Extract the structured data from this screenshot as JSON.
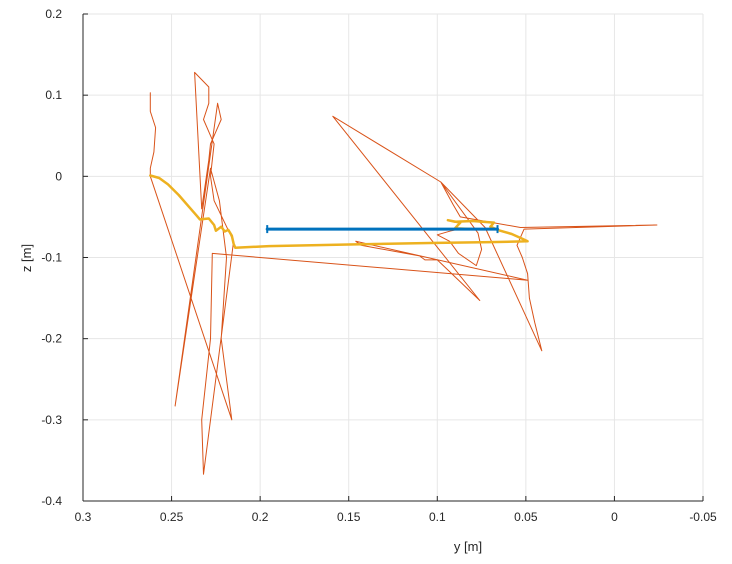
{
  "chart_data": {
    "type": "line",
    "xlabel": "y [m]",
    "ylabel": "z [m]",
    "xlim": [
      0.3,
      -0.05
    ],
    "ylim": [
      -0.4,
      0.2
    ],
    "x_reversed": true,
    "grid": true,
    "xticks": [
      0.3,
      0.25,
      0.2,
      0.15,
      0.1,
      0.05,
      0,
      -0.05
    ],
    "xtick_labels": [
      "0.3",
      "0.25",
      "0.2",
      "0.15",
      "0.1",
      "0.05",
      "0",
      "-0.05"
    ],
    "yticks": [
      0.2,
      0.1,
      0,
      -0.1,
      -0.2,
      -0.3,
      -0.4
    ],
    "ytick_labels": [
      "0.2",
      "0.1",
      "0",
      "-0.1",
      "-0.2",
      "-0.3",
      "-0.4"
    ],
    "series": [
      {
        "color": "#D95319",
        "width": 1,
        "x": [
          0.262,
          0.262,
          0.259,
          0.26,
          0.262,
          0.262,
          0.216,
          0.222,
          0.219,
          0.223,
          0.228,
          0.248,
          0.224,
          0.222,
          0.228,
          0.229,
          0.233,
          0.237,
          0.229,
          0.229,
          0.232,
          0.226,
          0.228,
          0.226,
          0.215,
          0.232,
          0.233,
          0.228,
          0.227,
          0.049,
          0.146,
          0.143,
          0.11,
          0.107,
          0.1,
          0.076,
          0.159,
          0.098,
          0.091,
          0.087,
          0.053,
          -0.024,
          0.051,
          0.055,
          0.052,
          0.049,
          0.048,
          0.045,
          0.041,
          0.073,
          0.098,
          0.077,
          0.075,
          0.078,
          0.088,
          0.093,
          0.1,
          0.092,
          0.086
        ],
        "y": [
          0.103,
          0.08,
          0.06,
          0.03,
          0.01,
          0.0,
          -0.3,
          -0.2,
          -0.1,
          -0.03,
          0.01,
          -0.283,
          0.09,
          0.07,
          0.04,
          0.02,
          -0.04,
          0.128,
          0.11,
          0.09,
          0.07,
          0.04,
          0.0,
          -0.03,
          -0.08,
          -0.367,
          -0.3,
          -0.2,
          -0.095,
          -0.128,
          -0.08,
          -0.085,
          -0.098,
          -0.103,
          -0.103,
          -0.153,
          0.074,
          -0.007,
          -0.035,
          -0.05,
          -0.063,
          -0.06,
          -0.065,
          -0.085,
          -0.1,
          -0.12,
          -0.15,
          -0.18,
          -0.215,
          -0.063,
          -0.007,
          -0.07,
          -0.09,
          -0.11,
          -0.095,
          -0.08,
          -0.072,
          -0.067,
          -0.064
        ]
      },
      {
        "color": "#EDB120",
        "width": 2.5,
        "x": [
          0.262,
          0.257,
          0.252,
          0.246,
          0.24,
          0.236,
          0.234,
          0.229,
          0.226,
          0.225,
          0.222,
          0.22,
          0.218,
          0.216,
          0.215,
          0.214,
          0.195,
          0.15,
          0.1,
          0.07,
          0.049,
          0.052,
          0.058,
          0.066,
          0.07,
          0.068,
          0.08,
          0.09,
          0.094,
          0.087,
          0.09,
          0.08
        ],
        "y": [
          0.001,
          -0.002,
          -0.01,
          -0.023,
          -0.038,
          -0.048,
          -0.053,
          -0.052,
          -0.06,
          -0.067,
          -0.062,
          -0.068,
          -0.066,
          -0.073,
          -0.083,
          -0.088,
          -0.086,
          -0.084,
          -0.082,
          -0.081,
          -0.08,
          -0.077,
          -0.071,
          -0.066,
          -0.062,
          -0.057,
          -0.055,
          -0.056,
          -0.054,
          -0.057,
          -0.064,
          -0.065
        ]
      },
      {
        "color": "#0072BD",
        "width": 3,
        "error_bar": true,
        "x": [
          0.196,
          0.066
        ],
        "y": [
          -0.065,
          -0.065
        ]
      }
    ]
  }
}
